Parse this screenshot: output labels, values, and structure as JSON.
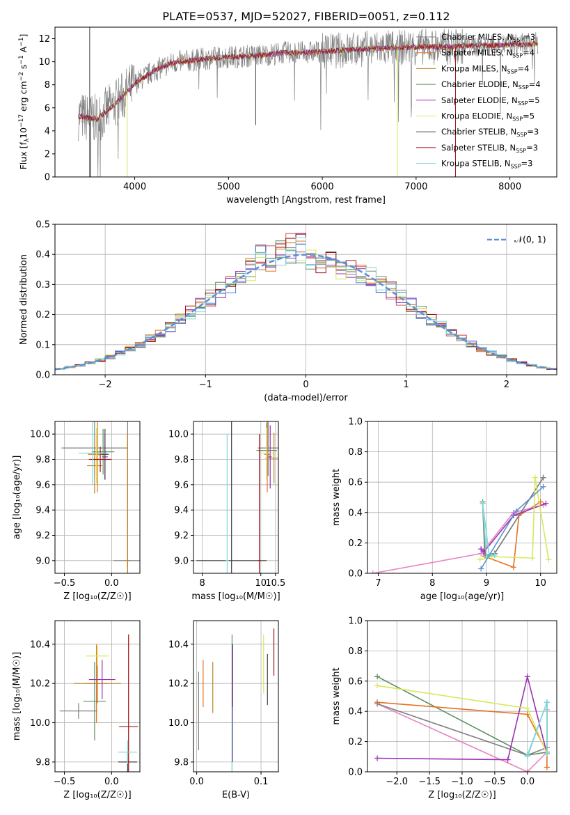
{
  "title": "PLATE=0537, MJD=52027, FIBERID=0051, z=0.112",
  "colors": [
    "#808080",
    "#e37222",
    "#b5862a",
    "#5a8f5e",
    "#9b30b4",
    "#d8e85a",
    "#404040",
    "#a01010",
    "#7fd8d8"
  ],
  "hist_colors": [
    "#808080",
    "#e37222",
    "#cc5f5f",
    "#5a8f5e",
    "#9b30b4",
    "#d8e85a",
    "#4a7ad8",
    "#a01010",
    "#7fd8d8"
  ],
  "legend_spectrum": [
    "Chabrier MILES, N_SSP=3",
    "Salpeter MILES, N_SSP=4",
    "Kroupa MILES, N_SSP=4",
    "Chabrier ELODIE, N_SSP=4",
    "Salpeter ELODIE, N_SSP=5",
    "Kroupa ELODIE, N_SSP=5",
    "Chabrier STELIB, N_SSP=3",
    "Salpeter STELIB, N_SSP=3",
    "Kroupa STELIB, N_SSP=3"
  ],
  "chart_data": [
    {
      "type": "line",
      "title": "PLATE=0537, MJD=52027, FIBERID=0051, z=0.112",
      "xlabel": "wavelength [Angstrom, rest frame]",
      "ylabel": "Flux [f_λ 10^-17 erg cm^-2 s^-1 A^-1]",
      "xlim": [
        3150,
        8500
      ],
      "ylim": [
        0,
        13
      ],
      "xticks": [
        4000,
        5000,
        6000,
        7000,
        8000
      ],
      "yticks": [
        0,
        2,
        4,
        6,
        8,
        10,
        12
      ],
      "continuum_x": [
        3400,
        3600,
        3800,
        4000,
        4200,
        4400,
        4600,
        4800,
        5000,
        5200,
        5400,
        5600,
        5800,
        6000,
        6200,
        6400,
        6600,
        6800,
        7000,
        7200,
        7400,
        7600,
        7800,
        8000,
        8200,
        8300
      ],
      "continuum_y": [
        5.3,
        5.0,
        6.4,
        8.1,
        9.2,
        9.9,
        10.1,
        10.3,
        10.4,
        10.5,
        10.6,
        10.8,
        10.8,
        10.9,
        11.0,
        11.1,
        11.2,
        11.2,
        11.3,
        11.3,
        11.3,
        11.4,
        11.4,
        11.5,
        11.5,
        11.6
      ],
      "legend": "top-right"
    },
    {
      "type": "line",
      "xlabel": "(data-model)/error",
      "ylabel": "Normed distribution",
      "xlim": [
        -2.5,
        2.5
      ],
      "ylim": [
        0,
        0.5
      ],
      "xticks": [
        -2,
        -1,
        0,
        1,
        2
      ],
      "yticks": [
        0.0,
        0.1,
        0.2,
        0.3,
        0.4,
        0.5
      ],
      "reference_series": {
        "name": "N(0,1)",
        "mean": 0,
        "sigma": 1
      },
      "histogram_bin_width": 0.1,
      "legend": "top-right",
      "grid": true
    },
    {
      "type": "scatter",
      "xlabel": "Z [log10(Z/Z_sun)]",
      "ylabel": "age [log10(age/yr)]",
      "xlim": [
        -0.6,
        0.3
      ],
      "ylim": [
        8.9,
        10.1
      ],
      "xticks": [
        -0.5,
        0.0
      ],
      "yticks": [
        9.0,
        9.2,
        9.4,
        9.6,
        9.8,
        10.0
      ],
      "points": [
        {
          "x": -0.18,
          "y": 9.89,
          "xe": 0.35,
          "ye": 0.22
        },
        {
          "x": -0.15,
          "y": 9.84,
          "xe": 0.1,
          "ye": 0.3
        },
        {
          "x": -0.18,
          "y": 9.75,
          "xe": 0.08,
          "ye": 0.22
        },
        {
          "x": -0.09,
          "y": 9.86,
          "xe": 0.12,
          "ye": 0.18
        },
        {
          "x": -0.07,
          "y": 9.82,
          "xe": 0.03,
          "ye": 0.18
        },
        {
          "x": -0.16,
          "y": 9.83,
          "xe": 0.03,
          "ye": 0.22
        },
        {
          "x": -0.07,
          "y": 9.84,
          "xe": 0.04,
          "ye": 0.2
        },
        {
          "x": -0.12,
          "y": 9.8,
          "xe": 0.12,
          "ye": 0.1
        },
        {
          "x": -0.2,
          "y": 9.85,
          "xe": 0.15,
          "ye": 0.25
        },
        {
          "x": 0.17,
          "y": 9.0,
          "xe": 0.15,
          "ye": 1.1
        },
        {
          "x": 0.17,
          "y": 9.0,
          "xe": 0.02,
          "ye": 1.0
        },
        {
          "x": 0.17,
          "y": 9.0,
          "xe": 0.02,
          "ye": 1.0
        }
      ]
    },
    {
      "type": "scatter",
      "xlabel": "mass [log10(M/M_sun)]",
      "ylabel": "",
      "xlim": [
        7.7,
        10.6
      ],
      "ylim": [
        8.9,
        10.1
      ],
      "xticks": [
        8,
        10,
        10.5
      ],
      "yticks": [
        9.0,
        9.2,
        9.4,
        9.6,
        9.8,
        10.0
      ],
      "points": [
        {
          "x": 10.25,
          "y": 9.89,
          "xe": 0.35,
          "ye": 0.22
        },
        {
          "x": 10.22,
          "y": 9.84,
          "xe": 0.1,
          "ye": 0.3
        },
        {
          "x": 10.45,
          "y": 9.81,
          "xe": 0.3,
          "ye": 0.2
        },
        {
          "x": 10.2,
          "y": 9.87,
          "xe": 0.35,
          "ye": 0.22
        },
        {
          "x": 10.32,
          "y": 9.82,
          "xe": 0.05,
          "ye": 0.25
        },
        {
          "x": 10.2,
          "y": 9.85,
          "xe": 0.25,
          "ye": 0.2
        },
        {
          "x": 9.0,
          "y": 9.0,
          "xe": 1.2,
          "ye": 1.1
        },
        {
          "x": 9.95,
          "y": 9.0,
          "xe": 0.05,
          "ye": 1.0
        },
        {
          "x": 8.85,
          "y": 9.0,
          "xe": 0.05,
          "ye": 1.0
        }
      ]
    },
    {
      "type": "line",
      "xlabel": "age [log10(age/yr)]",
      "ylabel": "mass weight",
      "xlim": [
        6.8,
        10.3
      ],
      "ylim": [
        0,
        1
      ],
      "xticks": [
        7,
        8,
        9,
        10
      ],
      "yticks": [
        0.0,
        0.2,
        0.4,
        0.6,
        0.8,
        1.0
      ],
      "series": [
        {
          "x": [
            8.93,
            8.97,
            9.15,
            10.05
          ],
          "y": [
            0.47,
            0.11,
            0.13,
            0.63
          ]
        },
        {
          "x": [
            8.97,
            9.5,
            9.6,
            10.0
          ],
          "y": [
            0.11,
            0.04,
            0.38,
            0.47
          ]
        },
        {
          "x": [
            6.9,
            8.9,
            9.5,
            10.05
          ],
          "y": [
            0.0,
            0.13,
            0.4,
            0.45
          ]
        },
        {
          "x": [
            8.93,
            8.98,
            9.15,
            10.05
          ],
          "y": [
            0.46,
            0.12,
            0.13,
            0.63
          ]
        },
        {
          "x": [
            8.9,
            8.95,
            9.5,
            10.1
          ],
          "y": [
            0.16,
            0.14,
            0.38,
            0.46
          ]
        },
        {
          "x": [
            8.88,
            9.1,
            9.85,
            9.9,
            10.15
          ],
          "y": [
            0.09,
            0.11,
            0.1,
            0.63,
            0.09
          ]
        },
        {
          "x": [
            8.93,
            9.0,
            9.15
          ],
          "y": [
            0.46,
            0.11,
            0.12
          ]
        },
        {
          "x": [
            8.93,
            9.05,
            9.15
          ],
          "y": [
            0.46,
            0.12,
            0.12
          ]
        },
        {
          "x": [
            8.9,
            9.55,
            10.05
          ],
          "y": [
            0.03,
            0.41,
            0.57
          ]
        }
      ]
    },
    {
      "type": "scatter",
      "xlabel": "Z [log10(Z/Z_sun)]",
      "ylabel": "mass [log10(M/M_sun)]",
      "xlim": [
        -0.6,
        0.3
      ],
      "ylim": [
        9.75,
        10.52
      ],
      "xticks": [
        -0.5,
        0.0
      ],
      "yticks": [
        9.8,
        10.0,
        10.2,
        10.4
      ],
      "points": [
        {
          "x": -0.35,
          "y": 10.06,
          "xe": 0.2,
          "ye": 0.04
        },
        {
          "x": -0.16,
          "y": 10.2,
          "xe": 0.12,
          "ye": 0.2
        },
        {
          "x": -0.15,
          "y": 10.2,
          "xe": 0.25,
          "ye": 0.1
        },
        {
          "x": -0.18,
          "y": 10.11,
          "xe": 0.12,
          "ye": 0.2
        },
        {
          "x": -0.1,
          "y": 10.22,
          "xe": 0.14,
          "ye": 0.1
        },
        {
          "x": -0.15,
          "y": 10.34,
          "xe": 0.12,
          "ye": 0.05
        },
        {
          "x": 0.17,
          "y": 9.8,
          "xe": 0.1,
          "ye": 0.05
        },
        {
          "x": 0.18,
          "y": 9.98,
          "xe": 0.1,
          "ye": 0.47
        },
        {
          "x": 0.17,
          "y": 9.85,
          "xe": 0.1,
          "ye": 0.06
        }
      ]
    },
    {
      "type": "scatter",
      "xlabel": "E(B-V)",
      "ylabel": "",
      "xlim": [
        -0.005,
        0.127
      ],
      "ylim": [
        9.75,
        10.52
      ],
      "xticks": [
        0.0,
        0.1
      ],
      "yticks": [
        9.8,
        10.0,
        10.2,
        10.4
      ],
      "points": [
        {
          "x": 0.003,
          "y": 10.06,
          "xe": 0,
          "ye": 0.2
        },
        {
          "x": 0.01,
          "y": 10.2,
          "xe": 0,
          "ye": 0.12
        },
        {
          "x": 0.025,
          "y": 10.18,
          "xe": 0,
          "ye": 0.13
        },
        {
          "x": 0.055,
          "y": 10.1,
          "xe": 0,
          "ye": 0.35
        },
        {
          "x": 0.056,
          "y": 10.1,
          "xe": 0,
          "ye": 0.3
        },
        {
          "x": 0.104,
          "y": 10.3,
          "xe": 0,
          "ye": 0.15
        },
        {
          "x": 0.11,
          "y": 10.22,
          "xe": 0,
          "ye": 0.13
        },
        {
          "x": 0.12,
          "y": 10.36,
          "xe": 0,
          "ye": 0.12
        },
        {
          "x": 0.055,
          "y": 9.9,
          "xe": 0,
          "ye": 0.18
        }
      ]
    },
    {
      "type": "line",
      "xlabel": "Z [log10(Z/Z_sun)]",
      "ylabel": "mass weight",
      "xlim": [
        -2.45,
        0.45
      ],
      "ylim": [
        0,
        1
      ],
      "xticks": [
        -2.0,
        -1.5,
        -1.0,
        -0.5,
        0.0
      ],
      "yticks": [
        0.0,
        0.2,
        0.4,
        0.6,
        0.8,
        1.0
      ],
      "series": [
        {
          "x": [
            -2.3,
            0.0,
            0.3,
            0.3
          ],
          "y": [
            0.63,
            0.11,
            0.13,
            0.46
          ]
        },
        {
          "x": [
            -2.3,
            0.0,
            0.3,
            0.3
          ],
          "y": [
            0.46,
            0.38,
            0.13,
            0.03
          ]
        },
        {
          "x": [
            -2.3,
            0.0,
            0.3,
            0.3
          ],
          "y": [
            0.45,
            0.0,
            0.13,
            0.41
          ]
        },
        {
          "x": [
            -2.3,
            0.0,
            0.3,
            0.3
          ],
          "y": [
            0.45,
            0.11,
            0.16,
            0.46
          ]
        },
        {
          "x": [
            -2.3,
            -0.3,
            0.0,
            0.3
          ],
          "y": [
            0.09,
            0.08,
            0.63,
            0.12
          ]
        },
        {
          "x": [
            -2.3,
            0.0,
            0.3
          ],
          "y": [
            0.57,
            0.42,
            0.12
          ]
        },
        {
          "x": [
            0.0,
            0.3,
            0.3
          ],
          "y": [
            0.11,
            0.46,
            0.12
          ]
        },
        {
          "x": [
            0.0,
            0.3,
            0.3
          ],
          "y": [
            0.1,
            0.46,
            0.12
          ]
        }
      ]
    }
  ]
}
